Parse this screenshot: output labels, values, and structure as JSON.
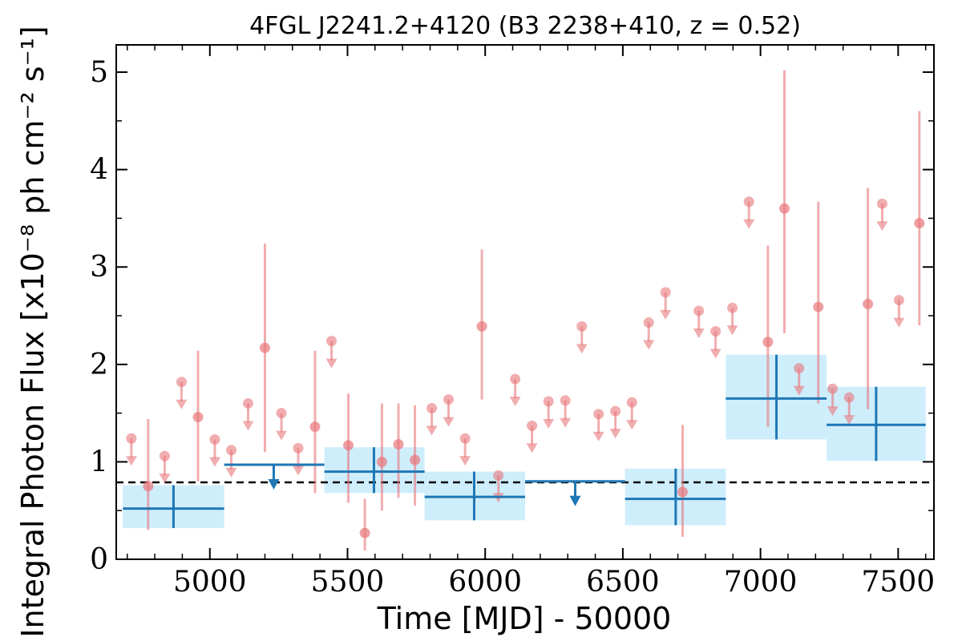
{
  "chart_data": {
    "type": "scatter",
    "title": "4FGL J2241.2+4120 (B3 2238+410, z = 0.52)",
    "xlabel": "Time [MJD] - 50000",
    "ylabel": "Integral Photon Flux [x10⁻⁸ ph cm⁻² s⁻¹]",
    "xlim": [
      4660,
      7630
    ],
    "ylim": [
      0,
      5.28
    ],
    "xticks": [
      5000,
      5500,
      6000,
      6500,
      7000,
      7500
    ],
    "yticks": [
      0,
      1,
      2,
      3,
      4,
      5
    ],
    "xtick_labels": [
      "5000",
      "5500",
      "6000",
      "6500",
      "7000",
      "7500"
    ],
    "ytick_labels": [
      "0",
      "1",
      "2",
      "3",
      "4",
      "5"
    ],
    "grid": false,
    "reference_line": {
      "y": 0.79,
      "style": "dashed",
      "color": "#000000"
    },
    "colors": {
      "monthly": "#e8767a",
      "yearly": "#1f77b4",
      "yearly_band": "#cfeefc"
    },
    "series": [
      {
        "points": [
          {
            "x": 4776,
            "y": 0.75,
            "ylo": 0.3,
            "yhi": 1.44
          },
          {
            "x": 4957,
            "y": 1.46,
            "ylo": 0.8,
            "yhi": 2.14
          },
          {
            "x": 5200,
            "y": 2.17,
            "ylo": 1.1,
            "yhi": 3.24
          },
          {
            "x": 5382,
            "y": 1.36,
            "ylo": 0.68,
            "yhi": 2.14
          },
          {
            "x": 5503,
            "y": 1.17,
            "ylo": 0.58,
            "yhi": 1.7
          },
          {
            "x": 5563,
            "y": 0.27,
            "ylo": 0.09,
            "yhi": 0.62
          },
          {
            "x": 5625,
            "y": 1.0,
            "ylo": 0.5,
            "yhi": 1.6
          },
          {
            "x": 5685,
            "y": 1.18,
            "ylo": 0.63,
            "yhi": 1.6
          },
          {
            "x": 5745,
            "y": 1.02,
            "ylo": 0.55,
            "yhi": 1.58
          },
          {
            "x": 5988,
            "y": 2.39,
            "ylo": 1.64,
            "yhi": 3.18
          },
          {
            "x": 6717,
            "y": 0.69,
            "ylo": 0.23,
            "yhi": 1.38
          },
          {
            "x": 7027,
            "y": 2.23,
            "ylo": 1.36,
            "yhi": 3.22
          },
          {
            "x": 7087,
            "y": 3.6,
            "ylo": 2.32,
            "yhi": 5.02
          },
          {
            "x": 7210,
            "y": 2.59,
            "ylo": 1.6,
            "yhi": 3.67
          },
          {
            "x": 7390,
            "y": 2.62,
            "ylo": 1.54,
            "yhi": 3.81
          },
          {
            "x": 7577,
            "y": 3.45,
            "ylo": 2.4,
            "yhi": 4.6
          }
        ]
      },
      {
        "upper_limits": [
          {
            "x": 4715,
            "y": 1.24
          },
          {
            "x": 4836,
            "y": 1.06
          },
          {
            "x": 4897,
            "y": 1.82
          },
          {
            "x": 5018,
            "y": 1.23
          },
          {
            "x": 5078,
            "y": 1.12
          },
          {
            "x": 5139,
            "y": 1.6
          },
          {
            "x": 5260,
            "y": 1.5
          },
          {
            "x": 5321,
            "y": 1.14
          },
          {
            "x": 5442,
            "y": 2.24
          },
          {
            "x": 5806,
            "y": 1.55
          },
          {
            "x": 5867,
            "y": 1.64
          },
          {
            "x": 5927,
            "y": 1.24
          },
          {
            "x": 6048,
            "y": 0.86
          },
          {
            "x": 6109,
            "y": 1.85
          },
          {
            "x": 6170,
            "y": 1.37
          },
          {
            "x": 6230,
            "y": 1.62
          },
          {
            "x": 6291,
            "y": 1.63
          },
          {
            "x": 6351,
            "y": 2.39
          },
          {
            "x": 6412,
            "y": 1.49
          },
          {
            "x": 6473,
            "y": 1.52
          },
          {
            "x": 6533,
            "y": 1.61
          },
          {
            "x": 6594,
            "y": 2.43
          },
          {
            "x": 6655,
            "y": 2.74
          },
          {
            "x": 6776,
            "y": 2.55
          },
          {
            "x": 6837,
            "y": 2.34
          },
          {
            "x": 6898,
            "y": 2.58
          },
          {
            "x": 6958,
            "y": 3.67
          },
          {
            "x": 7140,
            "y": 1.96
          },
          {
            "x": 7262,
            "y": 1.75
          },
          {
            "x": 7322,
            "y": 1.66
          },
          {
            "x": 7442,
            "y": 3.65
          },
          {
            "x": 7503,
            "y": 2.66
          }
        ]
      },
      {
        "bins": [
          {
            "x": 4868,
            "xlo": 4684,
            "xhi": 5052,
            "y": 0.52,
            "ylo": 0.32,
            "yhi": 0.76
          },
          {
            "x": 5596,
            "xlo": 5416,
            "xhi": 5780,
            "y": 0.9,
            "ylo": 0.68,
            "yhi": 1.15
          },
          {
            "x": 5960,
            "xlo": 5780,
            "xhi": 6145,
            "y": 0.64,
            "ylo": 0.4,
            "yhi": 0.9
          },
          {
            "x": 6692,
            "xlo": 6508,
            "xhi": 6874,
            "y": 0.62,
            "ylo": 0.35,
            "yhi": 0.93
          },
          {
            "x": 7058,
            "xlo": 6874,
            "xhi": 7240,
            "y": 1.65,
            "ylo": 1.23,
            "yhi": 2.1
          },
          {
            "x": 7420,
            "xlo": 7240,
            "xhi": 7600,
            "y": 1.38,
            "ylo": 1.01,
            "yhi": 1.77
          }
        ],
        "upper_limits": [
          {
            "x": 5232,
            "xlo": 5052,
            "xhi": 5416,
            "y": 0.97
          },
          {
            "x": 6327,
            "xlo": 6145,
            "xhi": 6508,
            "y": 0.8
          }
        ]
      }
    ]
  }
}
